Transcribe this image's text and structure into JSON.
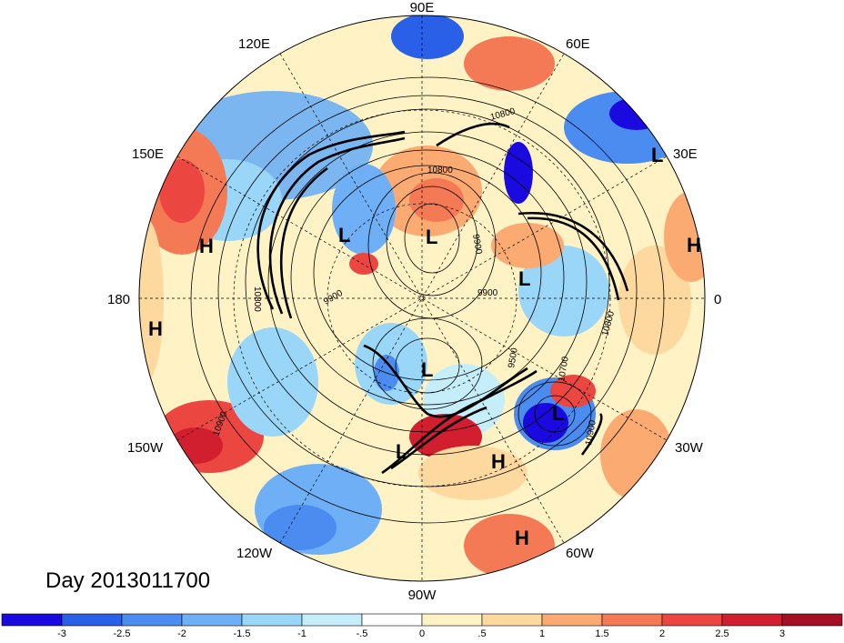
{
  "title": "Day 2013011700",
  "longitude_labels": [
    "90E",
    "60E",
    "30E",
    "0",
    "30W",
    "60W",
    "90W",
    "120W",
    "150W",
    "180",
    "150E",
    "120E"
  ],
  "pressure_systems": [
    {
      "label": "L",
      "lon_lat": "north-polar-1"
    },
    {
      "label": "L",
      "lon_lat": "north-polar-2"
    },
    {
      "label": "L",
      "lon_lat": "north-polar-3"
    },
    {
      "label": "L",
      "lon_lat": "canada"
    },
    {
      "label": "L",
      "lon_lat": "north-atlantic"
    },
    {
      "label": "L",
      "lon_lat": "us-east"
    },
    {
      "label": "L",
      "lon_lat": "central-asia"
    },
    {
      "label": "H",
      "lon_lat": "pacific-1"
    },
    {
      "label": "H",
      "lon_lat": "pacific-2"
    },
    {
      "label": "H",
      "lon_lat": "atlantic-subtropic"
    },
    {
      "label": "H",
      "lon_lat": "south-america"
    },
    {
      "label": "H",
      "lon_lat": "africa"
    }
  ],
  "contour_labels": [
    "10800",
    "9900",
    "9900",
    "10800",
    "10700",
    "10900",
    "9500",
    "9900",
    "10800",
    "10900",
    "10800"
  ],
  "colorbar": {
    "colors": [
      "#1a0adf",
      "#2a5fe8",
      "#4a8cf0",
      "#6eaff5",
      "#99d6f8",
      "#c6eefa",
      "#ffffff",
      "#fff3c5",
      "#fdd9a0",
      "#fbaa72",
      "#f47a55",
      "#ec4640",
      "#d11f2f",
      "#a50f24"
    ],
    "tick_labels": [
      "-3",
      "-2.5",
      "-2",
      "-1.5",
      "-1",
      "-.5",
      "0",
      ".5",
      "1",
      "1.5",
      "2",
      "2.5",
      "3"
    ]
  }
}
